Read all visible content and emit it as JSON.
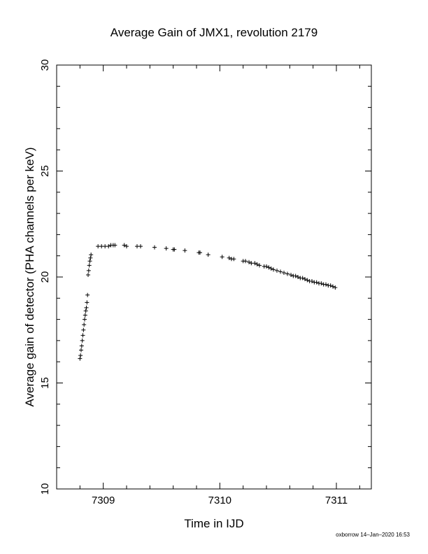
{
  "chart_data": {
    "type": "scatter",
    "title": "Average Gain of JMX1, revolution 2179",
    "xlabel": "Time in IJD",
    "ylabel": "Average gain of detector (PHA channels per keV)",
    "xlim": [
      7308.6,
      7311.3
    ],
    "ylim": [
      10,
      30
    ],
    "x_ticks": [
      7309,
      7310,
      7311
    ],
    "x_tick_labels": [
      "7309",
      "7310",
      "7311"
    ],
    "y_ticks": [
      10,
      15,
      20,
      25,
      30
    ],
    "y_tick_labels": [
      "10",
      "15",
      "20",
      "25",
      "30"
    ],
    "x_minor_step": 0.2,
    "y_minor_step": 1,
    "marker": "plus",
    "grid": false,
    "legend": "none",
    "series": [
      {
        "x": [
          7308.8,
          7308.805,
          7308.81,
          7308.815,
          7308.82,
          7308.825,
          7308.83,
          7308.835,
          7308.84,
          7308.845,
          7308.85,
          7308.855,
          7308.86,
          7308.865,
          7308.87,
          7308.875,
          7308.88,
          7308.885,
          7308.89,
          7308.895,
          7308.955,
          7308.985,
          7309.015,
          7309.045,
          7309.065,
          7309.085,
          7309.1,
          7309.18,
          7309.2,
          7309.29,
          7309.32,
          7309.44,
          7309.54,
          7309.6,
          7309.61,
          7309.7,
          7309.82,
          7309.83,
          7309.9,
          7310.02,
          7310.08,
          7310.1,
          7310.12,
          7310.2,
          7310.22,
          7310.25,
          7310.27,
          7310.3,
          7310.32,
          7310.34,
          7310.38,
          7310.4,
          7310.42,
          7310.44,
          7310.46,
          7310.49,
          7310.52,
          7310.55,
          7310.58,
          7310.61,
          7310.63,
          7310.65,
          7310.67,
          7310.69,
          7310.71,
          7310.73,
          7310.75,
          7310.77,
          7310.79,
          7310.81,
          7310.83,
          7310.85,
          7310.87,
          7310.89,
          7310.91,
          7310.93,
          7310.95,
          7310.97,
          7310.99
        ],
        "y": [
          16.15,
          16.3,
          16.55,
          16.75,
          17.0,
          17.25,
          17.5,
          17.75,
          18.0,
          18.2,
          18.4,
          18.55,
          18.8,
          19.15,
          20.1,
          20.3,
          20.55,
          20.75,
          20.9,
          21.05,
          21.45,
          21.45,
          21.45,
          21.45,
          21.5,
          21.5,
          21.5,
          21.5,
          21.45,
          21.45,
          21.45,
          21.4,
          21.35,
          21.3,
          21.3,
          21.25,
          21.15,
          21.15,
          21.05,
          20.95,
          20.9,
          20.85,
          20.85,
          20.75,
          20.75,
          20.7,
          20.65,
          20.65,
          20.6,
          20.55,
          20.5,
          20.5,
          20.45,
          20.4,
          20.35,
          20.3,
          20.25,
          20.2,
          20.15,
          20.1,
          20.05,
          20.05,
          20.0,
          19.95,
          19.95,
          19.9,
          19.85,
          19.8,
          19.8,
          19.75,
          19.75,
          19.7,
          19.7,
          19.65,
          19.65,
          19.6,
          19.6,
          19.55,
          19.5
        ]
      }
    ]
  },
  "footer": {
    "credit": "oxborrow 14–Jan–2020 16:53"
  }
}
